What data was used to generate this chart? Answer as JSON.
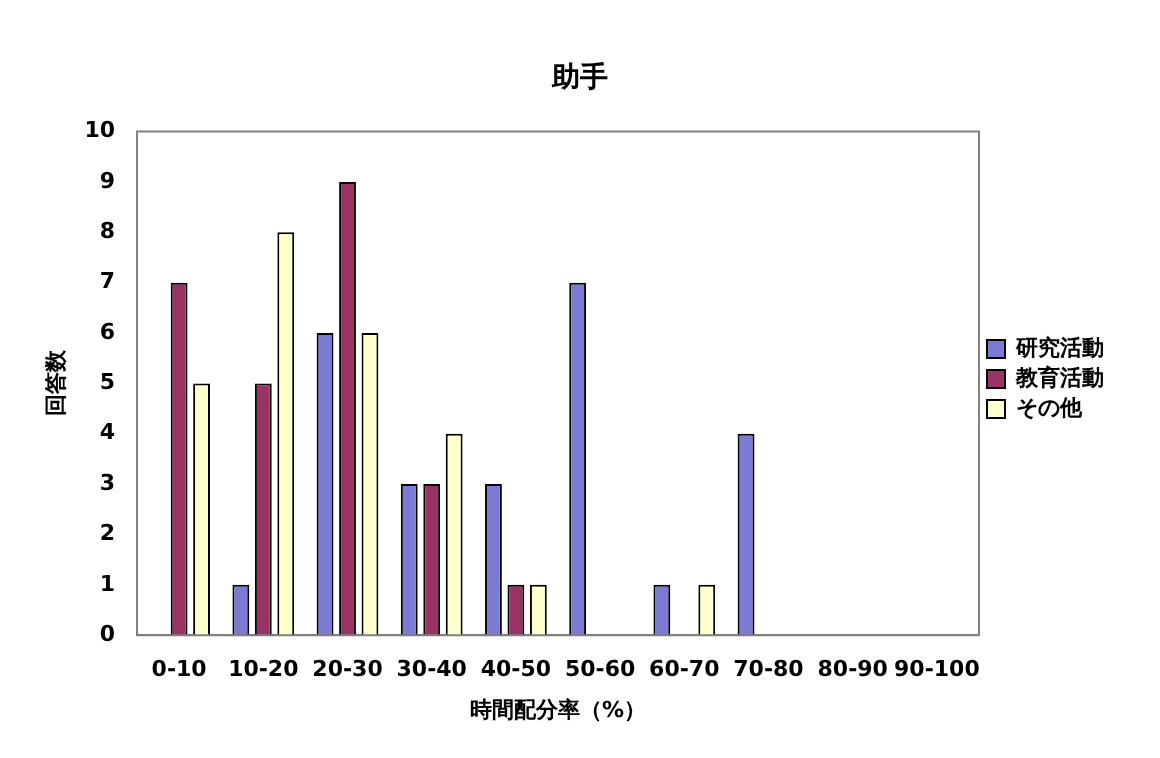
{
  "chart_data": {
    "type": "bar",
    "title": "助手",
    "xlabel": "時間配分率（%）",
    "ylabel": "回答数",
    "categories": [
      "0-10",
      "10-20",
      "20-30",
      "30-40",
      "40-50",
      "50-60",
      "60-70",
      "70-80",
      "80-90",
      "90-100"
    ],
    "series": [
      {
        "name": "研究活動",
        "color": "#7b7bd6",
        "values": [
          0,
          1,
          6,
          3,
          3,
          7,
          1,
          4,
          0,
          0
        ]
      },
      {
        "name": "教育活動",
        "color": "#993366",
        "values": [
          7,
          5,
          9,
          3,
          1,
          0,
          0,
          0,
          0,
          0
        ]
      },
      {
        "name": "その他",
        "color": "#ffffcc",
        "values": [
          5,
          8,
          6,
          4,
          1,
          0,
          1,
          0,
          0,
          0
        ]
      }
    ],
    "ylim": [
      0,
      10
    ],
    "yticks": [
      0,
      1,
      2,
      3,
      4,
      5,
      6,
      7,
      8,
      9,
      10
    ],
    "grid": false,
    "legend": "right"
  }
}
